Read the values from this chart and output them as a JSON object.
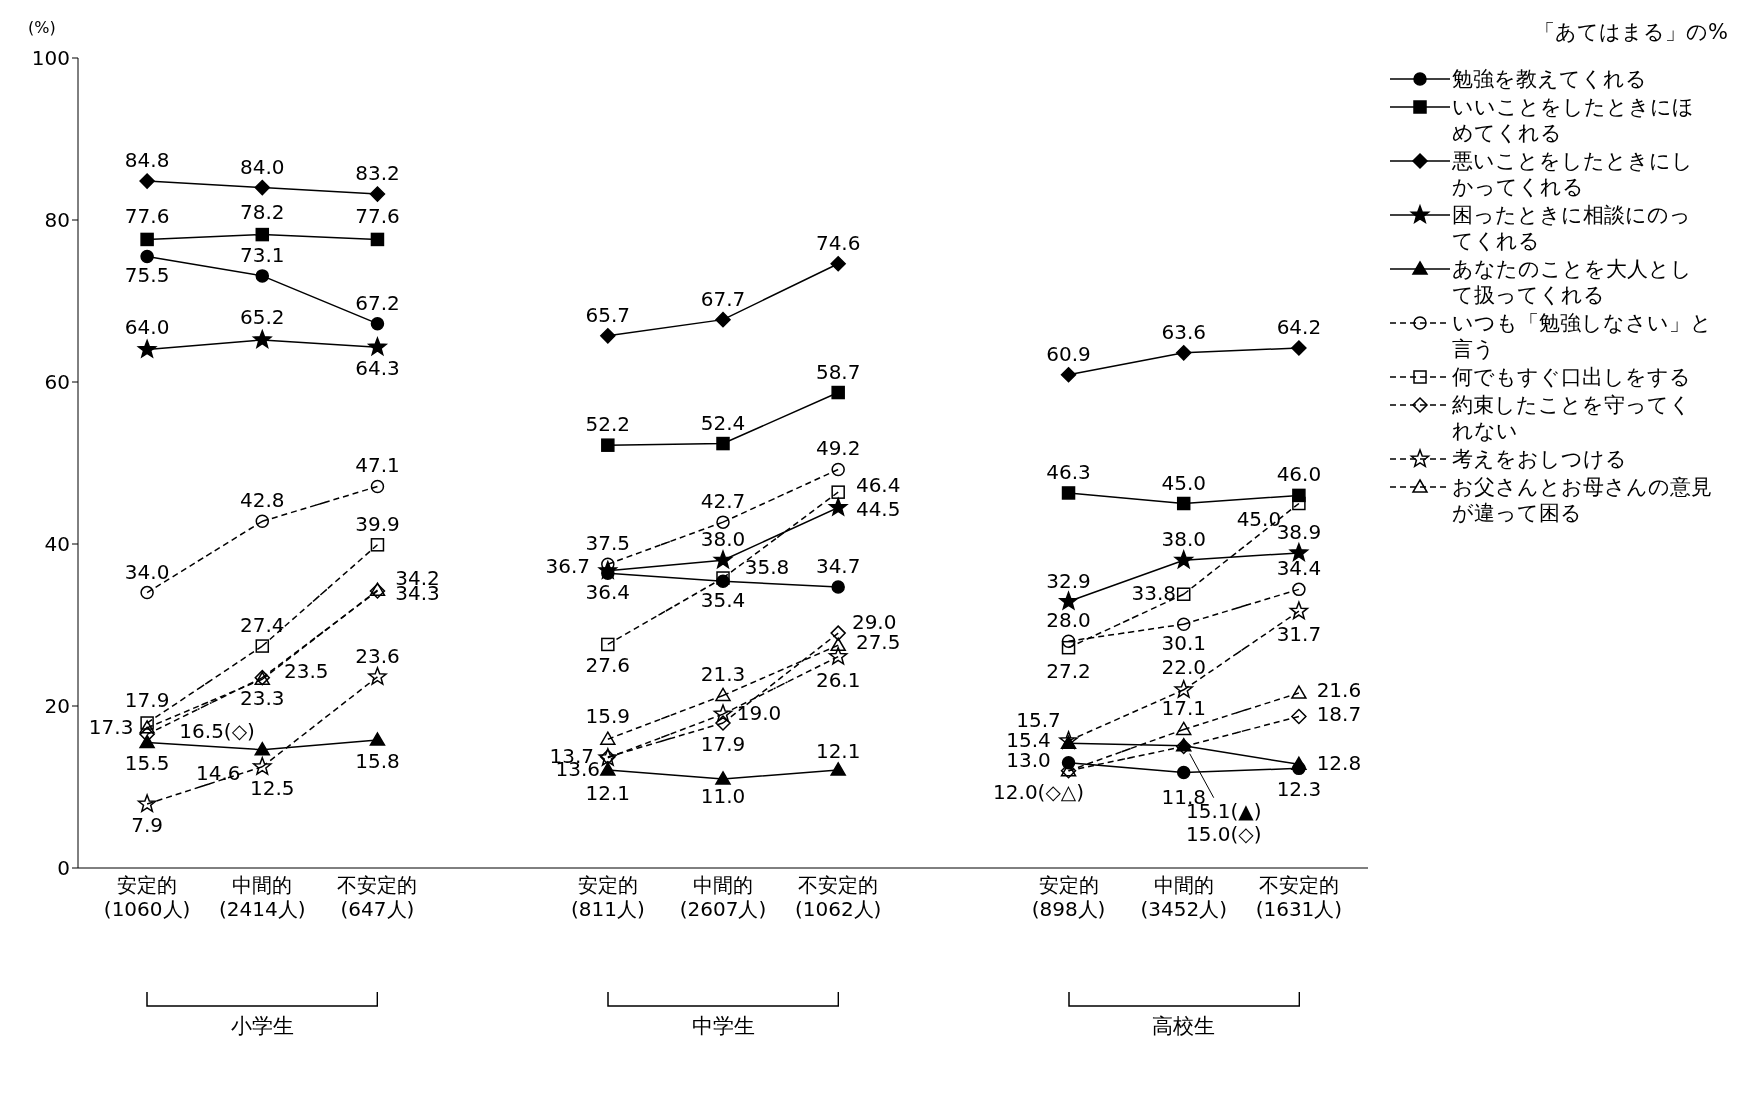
{
  "chart_data": {
    "type": "line",
    "ylabel": "(%)",
    "legend_title": "「あてはまる」の%",
    "legend": "right",
    "categories": [
      "安定的\n(1060人)",
      "中間的\n(2414人)",
      "不安定的\n(647人)",
      null,
      "安定的\n(811人)",
      "中間的\n(2607人)",
      "不安定的\n(1062人)",
      null,
      "安定的\n(898人)",
      "中間的\n(3452人)",
      "不安定的\n(1631人)"
    ],
    "ylim": [
      0,
      100
    ],
    "yticks": [
      0,
      20,
      40,
      60,
      80,
      100
    ],
    "grid": false,
    "annotations": [
      "小学生",
      "中学生",
      "高校生"
    ],
    "series": [
      {
        "name": "勉強を教えてくれる",
        "color": "#000000",
        "marker": "circle",
        "line_style": "solid",
        "values": [
          75.5,
          73.1,
          67.2,
          null,
          36.4,
          35.4,
          34.7,
          null,
          13.0,
          11.8,
          12.3
        ],
        "value_labels": [
          "75.5",
          "73.1",
          "67.2",
          null,
          "36.4",
          "35.4",
          "34.7",
          null,
          "13.0",
          "11.8",
          "12.3"
        ]
      },
      {
        "name": "いいことをしたときにほめてくれる",
        "color": "#000000",
        "marker": "square",
        "line_style": "solid",
        "values": [
          77.6,
          78.2,
          77.6,
          null,
          52.2,
          52.4,
          58.7,
          null,
          46.3,
          45.0,
          46.0
        ],
        "value_labels": [
          "77.6",
          "78.2",
          "77.6",
          null,
          "52.2",
          "52.4",
          "58.7",
          null,
          "46.3",
          "45.0",
          "46.0"
        ]
      },
      {
        "name": "悪いことをしたときにしかってくれる",
        "color": "#000000",
        "marker": "diamond",
        "line_style": "solid",
        "values": [
          84.8,
          84.0,
          83.2,
          null,
          65.7,
          67.7,
          74.6,
          null,
          60.9,
          63.6,
          64.2
        ],
        "value_labels": [
          "84.8",
          "84.0",
          "83.2",
          null,
          "65.7",
          "67.7",
          "74.6",
          null,
          "60.9",
          "63.6",
          "64.2"
        ]
      },
      {
        "name": "困ったときに相談にのってくれる",
        "color": "#000000",
        "marker": "star",
        "line_style": "solid",
        "values": [
          64.0,
          65.2,
          64.3,
          null,
          36.7,
          38.0,
          44.5,
          null,
          32.9,
          38.0,
          38.9
        ],
        "value_labels": [
          "64.0",
          "65.2",
          "64.3",
          null,
          "36.7",
          "38.0",
          "44.5",
          null,
          "32.9",
          "38.0",
          "38.9"
        ]
      },
      {
        "name": "あなたのことを大人として扱ってくれる",
        "color": "#000000",
        "marker": "triangle",
        "line_style": "solid",
        "values": [
          15.5,
          14.6,
          15.8,
          null,
          12.1,
          11.0,
          12.1,
          null,
          15.4,
          15.1,
          12.8
        ],
        "value_labels": [
          "15.5",
          "14.6",
          "15.8",
          null,
          "12.1",
          "11.0",
          "12.1",
          null,
          "15.4",
          "15.1(▲)",
          "12.8"
        ]
      },
      {
        "name": "いつも「勉強しなさい」と言う",
        "color": "#000000",
        "marker": "circle",
        "line_style": "dashed",
        "values": [
          34.0,
          42.8,
          47.1,
          null,
          37.5,
          42.7,
          49.2,
          null,
          28.0,
          30.1,
          34.4
        ],
        "value_labels": [
          "34.0",
          "42.8",
          "47.1",
          null,
          "37.5",
          "42.7",
          "49.2",
          null,
          "28.0",
          "30.1",
          "34.4"
        ]
      },
      {
        "name": "何でもすぐ口出しをする",
        "color": "#000000",
        "marker": "square",
        "line_style": "dashed",
        "values": [
          17.9,
          27.4,
          39.9,
          null,
          27.6,
          35.8,
          46.4,
          null,
          27.2,
          33.8,
          45.0
        ],
        "value_labels": [
          "17.9",
          "27.4",
          "39.9",
          null,
          "27.6",
          "35.8",
          "46.4",
          null,
          "27.2",
          "33.8",
          "45.0"
        ]
      },
      {
        "name": "約束したことを守ってくれない",
        "color": "#000000",
        "marker": "diamond",
        "line_style": "dashed",
        "values": [
          16.5,
          23.5,
          34.2,
          null,
          13.7,
          17.9,
          29.0,
          null,
          12.0,
          15.0,
          18.7
        ],
        "value_labels": [
          "16.5(◇)",
          "23.5",
          "34.2",
          null,
          "13.7",
          "17.9",
          "29.0",
          null,
          "12.0(◇△)",
          "15.0(◇)",
          "18.7"
        ]
      },
      {
        "name": "考えをおしつける",
        "color": "#000000",
        "marker": "star",
        "line_style": "dashed",
        "values": [
          7.9,
          12.5,
          23.6,
          null,
          13.6,
          19.0,
          26.1,
          null,
          15.7,
          22.0,
          31.7
        ],
        "value_labels": [
          "7.9",
          "12.5",
          "23.6",
          null,
          "13.6",
          "19.0",
          "26.1",
          null,
          "15.7",
          "22.0",
          "31.7"
        ]
      },
      {
        "name": "お父さんとお母さんの意見が違って困る",
        "color": "#000000",
        "marker": "triangle",
        "line_style": "dashed",
        "values": [
          17.3,
          23.3,
          34.3,
          null,
          15.9,
          21.3,
          27.5,
          null,
          12.0,
          17.1,
          21.6
        ],
        "value_labels": [
          "17.3",
          "23.3",
          "34.3",
          null,
          "15.9",
          "21.3",
          "27.5",
          null,
          null,
          "17.1",
          "21.6"
        ]
      }
    ]
  }
}
